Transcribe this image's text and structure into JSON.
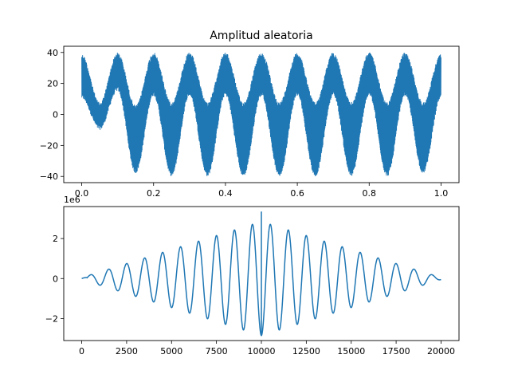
{
  "chart_data": [
    {
      "type": "line",
      "title": "Amplitud aleatoria",
      "xlabel": "",
      "ylabel": "",
      "xlim": [
        -0.05,
        1.05
      ],
      "ylim": [
        -44,
        44
      ],
      "xticks": [
        0.0,
        0.2,
        0.4,
        0.6,
        0.8,
        1.0
      ],
      "xtick_labels": [
        "0.0",
        "0.2",
        "0.4",
        "0.6",
        "0.8",
        "1.0"
      ],
      "yticks": [
        -40,
        -20,
        0,
        20,
        40
      ],
      "ytick_labels": [
        "−40",
        "−20",
        "0",
        "20",
        "40"
      ],
      "grid": false,
      "color": "#1f77b4",
      "signal": {
        "duration": 1.0,
        "slow_freq_hz": 10,
        "slow_amplitude": 25,
        "noise_amplitude": 15,
        "envelope": [
          {
            "x": 0.0,
            "upper": 39,
            "lower": 10
          },
          {
            "x": 0.05,
            "upper": 8,
            "lower": -10
          },
          {
            "x": 0.1,
            "upper": 40,
            "lower": 15
          },
          {
            "x": 0.15,
            "upper": 6,
            "lower": -38
          },
          {
            "x": 0.2,
            "upper": 40,
            "lower": 12
          },
          {
            "x": 0.25,
            "upper": 8,
            "lower": -40
          },
          {
            "x": 0.3,
            "upper": 40,
            "lower": 12
          },
          {
            "x": 0.35,
            "upper": 8,
            "lower": -40
          },
          {
            "x": 0.4,
            "upper": 40,
            "lower": 12
          },
          {
            "x": 0.45,
            "upper": 8,
            "lower": -40
          },
          {
            "x": 0.5,
            "upper": 40,
            "lower": 12
          },
          {
            "x": 0.55,
            "upper": 8,
            "lower": -40
          },
          {
            "x": 0.6,
            "upper": 40,
            "lower": 12
          },
          {
            "x": 0.65,
            "upper": 8,
            "lower": -40
          },
          {
            "x": 0.7,
            "upper": 40,
            "lower": 12
          },
          {
            "x": 0.75,
            "upper": 8,
            "lower": -40
          },
          {
            "x": 0.8,
            "upper": 40,
            "lower": 12
          },
          {
            "x": 0.85,
            "upper": 8,
            "lower": -40
          },
          {
            "x": 0.9,
            "upper": 40,
            "lower": 12
          },
          {
            "x": 0.95,
            "upper": 8,
            "lower": -38
          },
          {
            "x": 1.0,
            "upper": 39,
            "lower": 10
          }
        ]
      }
    },
    {
      "type": "line",
      "title": "",
      "xlabel": "",
      "ylabel": "",
      "offset_label": "1e6",
      "xlim": [
        -1000,
        21000
      ],
      "ylim": [
        -3.1,
        3.6
      ],
      "xticks": [
        0,
        2500,
        5000,
        7500,
        10000,
        12500,
        15000,
        17500,
        20000
      ],
      "xtick_labels": [
        "0",
        "2500",
        "5000",
        "7500",
        "10000",
        "12500",
        "15000",
        "17500",
        "20000"
      ],
      "yticks": [
        -2,
        0,
        2
      ],
      "ytick_labels": [
        "−2",
        "0",
        "2"
      ],
      "grid": false,
      "color": "#1f77b4",
      "signal": {
        "x_start": 0,
        "x_end": 20000,
        "period": 1000,
        "center": 10000,
        "peak_amplitude": 2.8,
        "spike_max": 3.35,
        "spike_min": -2.8
      }
    }
  ]
}
